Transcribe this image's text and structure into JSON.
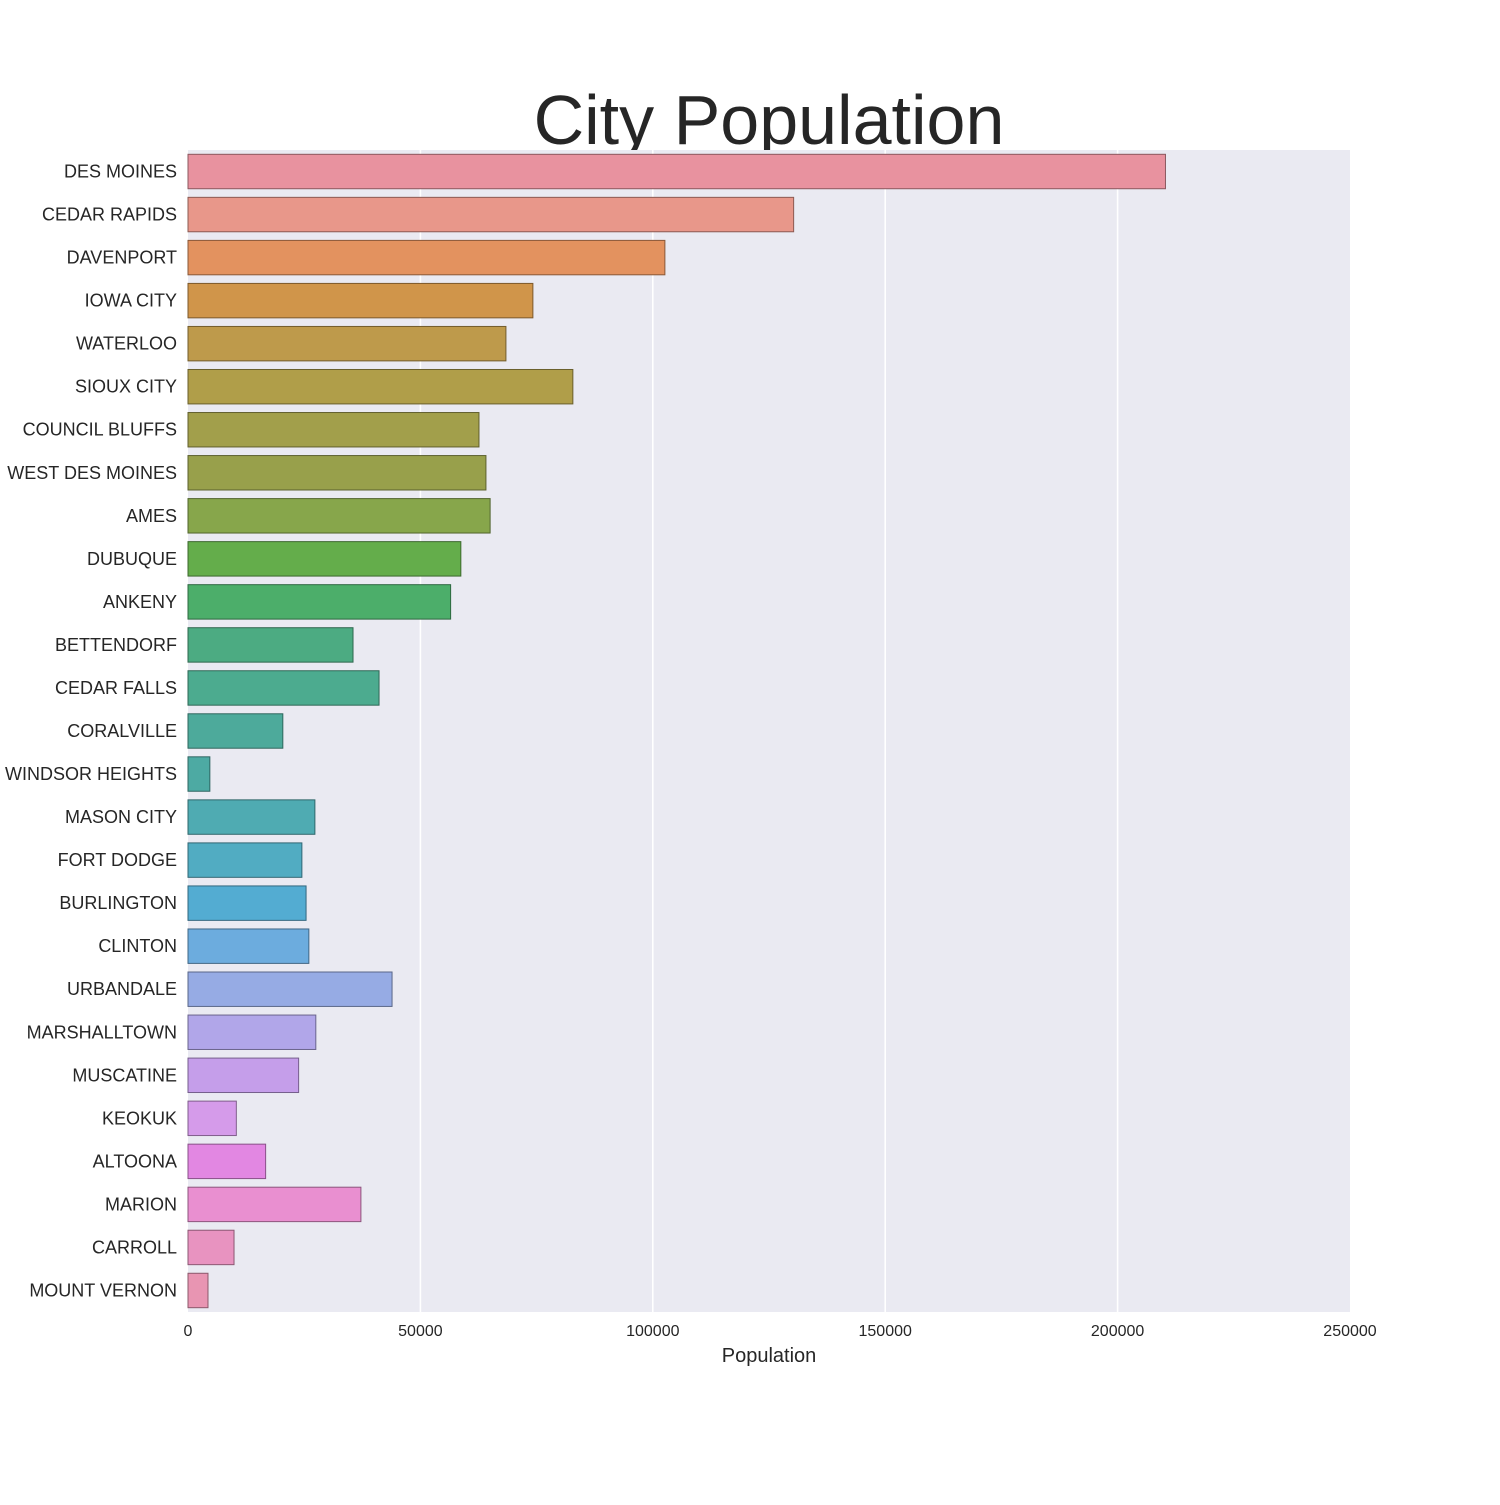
{
  "chart_data": {
    "type": "bar",
    "orientation": "horizontal",
    "title": "City Population",
    "xlabel": "Population",
    "ylabel": "",
    "xlim": [
      0,
      250000
    ],
    "x_ticks": [
      0,
      50000,
      100000,
      150000,
      200000,
      250000
    ],
    "x_tick_labels": [
      "0",
      "50000",
      "100000",
      "150000",
      "200000",
      "250000"
    ],
    "grid": "vertical",
    "background_color": "#eaeaf2",
    "categories": [
      "DES MOINES",
      "CEDAR RAPIDS",
      "DAVENPORT",
      "IOWA CITY",
      "WATERLOO",
      "SIOUX CITY",
      "COUNCIL BLUFFS",
      "WEST DES MOINES",
      "AMES",
      "DUBUQUE",
      "ANKENY",
      "BETTENDORF",
      "CEDAR FALLS",
      "CORALVILLE",
      "WINDSOR HEIGHTS",
      "MASON CITY",
      "FORT DODGE",
      "BURLINGTON",
      "CLINTON",
      "URBANDALE",
      "MARSHALLTOWN",
      "MUSCATINE",
      "KEOKUK",
      "ALTOONA",
      "MARION",
      "CARROLL",
      "MOUNT VERNON"
    ],
    "values": [
      210300,
      130300,
      102600,
      74200,
      68400,
      82800,
      62600,
      64100,
      65000,
      58700,
      56500,
      35500,
      41100,
      20400,
      4700,
      27300,
      24500,
      25400,
      26000,
      43900,
      27500,
      23800,
      10400,
      16700,
      37200,
      9900,
      4300
    ],
    "colors": [
      "#e8929f",
      "#e8978a",
      "#e3925f",
      "#d0954a",
      "#be9a4b",
      "#b09e49",
      "#a29f4b",
      "#98a04b",
      "#87a64b",
      "#64ad4b",
      "#4cae6a",
      "#4cab82",
      "#4cab8f",
      "#4daa9b",
      "#4daaa3",
      "#4fabb2",
      "#51acc2",
      "#53acd2",
      "#6cacde",
      "#96abe4",
      "#b1a6e9",
      "#c59eea",
      "#d59bea",
      "#e287e2",
      "#e98fd0",
      "#e893c0",
      "#e895b2"
    ]
  }
}
